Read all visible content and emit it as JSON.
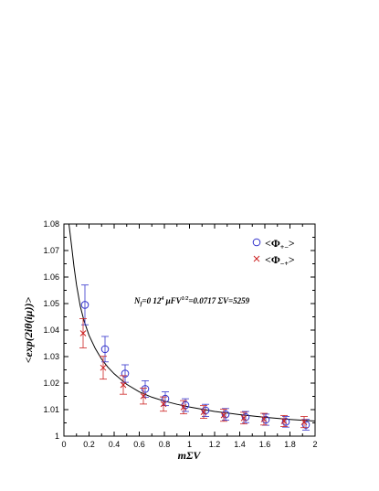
{
  "chart_data": {
    "type": "scatter",
    "xlabel": "mΣV",
    "ylabel": "<exp(2iθ(iμ))>",
    "xlim": [
      0,
      2
    ],
    "ylim": [
      1,
      1.08
    ],
    "xticks": [
      "0",
      "0.2",
      "0.4",
      "0.6",
      "0.8",
      "1",
      "1.2",
      "1.4",
      "1.6",
      "1.8",
      "2"
    ],
    "yticks": [
      "1",
      "1.01",
      "1.02",
      "1.03",
      "1.04",
      "1.05",
      "1.06",
      "1.07",
      "1.08"
    ],
    "annotation": "N_f=0  12^4  μFV^{1/2}=0.0717  ΣV=5259",
    "annotation_parts": {
      "nf": "N",
      "nf_sub": "f",
      "nf_val": "=0   12",
      "nf_sup": "4",
      "mu": "   μFV",
      "mu_sup": "1/2",
      "mu_val": "=0.0717  ΣV=5259"
    },
    "legend_position": "top-right",
    "series": [
      {
        "name": "<Φ+->",
        "label_main": "<Φ",
        "label_sub": "+−",
        "label_end": ">",
        "marker": "circle",
        "color": "#3333cc",
        "x": [
          0.16,
          0.32,
          0.48,
          0.64,
          0.8,
          0.96,
          1.12,
          1.28,
          1.44,
          1.6,
          1.76,
          1.92
        ],
        "y": [
          1.0495,
          1.0328,
          1.0236,
          1.0178,
          1.0141,
          1.0117,
          1.0097,
          1.0082,
          1.0072,
          1.0062,
          1.0054,
          1.0043
        ],
        "err": [
          0.0075,
          0.0048,
          0.0033,
          0.0031,
          0.0026,
          0.0024,
          0.0023,
          0.0022,
          0.0021,
          0.0021,
          0.002,
          0.002
        ]
      },
      {
        "name": "<Φ-+>",
        "label_main": "<Φ",
        "label_sub": "−+",
        "label_end": ">",
        "marker": "cross",
        "color": "#cc2222",
        "x": [
          0.16,
          0.32,
          0.48,
          0.64,
          0.8,
          0.96,
          1.12,
          1.28,
          1.44,
          1.6,
          1.76,
          1.92
        ],
        "y": [
          1.0388,
          1.0258,
          1.0193,
          1.0151,
          1.0121,
          1.0109,
          1.0091,
          1.0079,
          1.0068,
          1.0064,
          1.0057,
          1.0053
        ],
        "err": [
          0.0055,
          0.0043,
          0.0035,
          0.003,
          0.0027,
          0.0025,
          0.0024,
          0.0023,
          0.0022,
          0.0022,
          0.0021,
          0.0021
        ]
      }
    ],
    "curve": {
      "type": "line",
      "color": "#000000",
      "x": [
        0.04,
        0.06,
        0.08,
        0.1,
        0.13,
        0.16,
        0.2,
        0.25,
        0.3,
        0.35,
        0.4,
        0.5,
        0.6,
        0.7,
        0.8,
        0.9,
        1.0,
        1.2,
        1.4,
        1.6,
        1.8,
        2.0
      ],
      "y": [
        1.08,
        1.072,
        1.064,
        1.057,
        1.049,
        1.0435,
        1.038,
        1.033,
        1.029,
        1.026,
        1.0235,
        1.0195,
        1.0167,
        1.0147,
        1.0132,
        1.012,
        1.011,
        1.0093,
        1.0081,
        1.0071,
        1.0063,
        1.0057
      ]
    }
  }
}
